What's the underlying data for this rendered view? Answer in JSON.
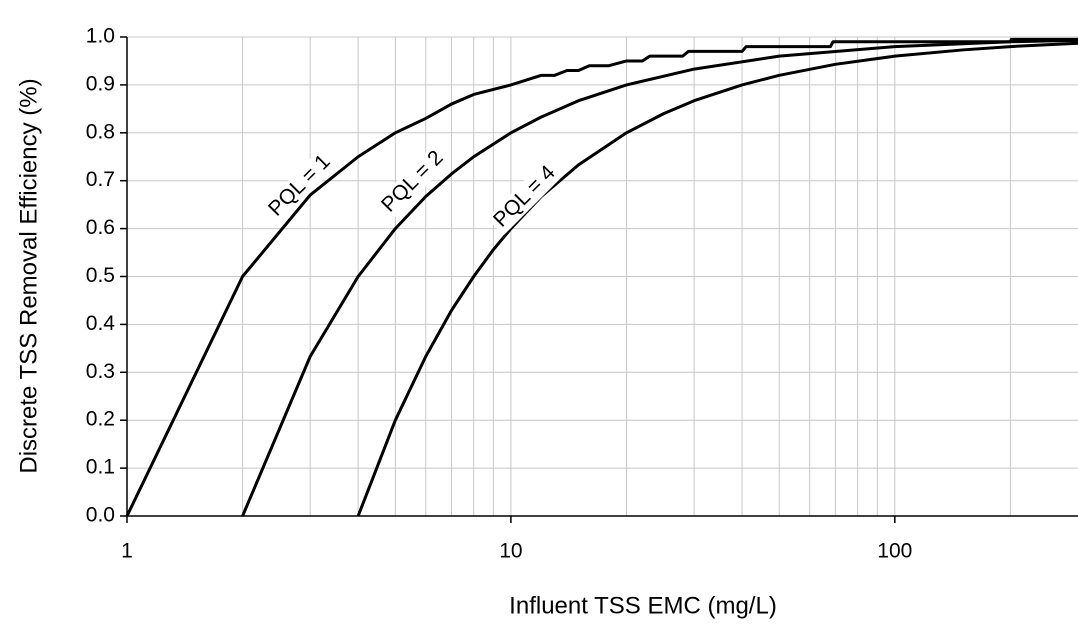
{
  "chart_data": {
    "type": "line",
    "xlabel": "Influent TSS EMC (mg/L)",
    "ylabel": "Discrete TSS Removal Efficiency (%)",
    "x_log": true,
    "xlim": [
      1,
      300
    ],
    "ylim": [
      0,
      1
    ],
    "xticks": [
      1,
      10,
      100
    ],
    "x_minor_grid": [
      2,
      3,
      4,
      5,
      6,
      7,
      8,
      9,
      20,
      30,
      40,
      50,
      60,
      70,
      80,
      90,
      200
    ],
    "yticks": [
      {
        "value": 0,
        "label": "0.0"
      },
      0.1,
      0.2,
      0.3,
      0.4,
      0.5,
      0.6,
      0.7,
      0.8,
      0.9,
      {
        "value": 1,
        "label": "1.0"
      }
    ],
    "grid": true,
    "series": [
      {
        "name": "PQL = 1",
        "color": "#000000",
        "x": [
          1,
          2,
          3,
          4,
          5,
          6,
          7,
          8,
          10,
          12,
          13,
          14,
          15,
          16,
          18,
          20,
          22,
          23,
          28,
          29,
          40,
          41,
          68,
          69,
          200,
          201,
          300
        ],
        "values": [
          0,
          0.5,
          0.67,
          0.75,
          0.8,
          0.83,
          0.86,
          0.88,
          0.9,
          0.92,
          0.92,
          0.93,
          0.93,
          0.94,
          0.94,
          0.95,
          0.95,
          0.96,
          0.96,
          0.97,
          0.97,
          0.98,
          0.98,
          0.99,
          0.99,
          0.995,
          0.995
        ]
      },
      {
        "name": "PQL = 2",
        "color": "#000000",
        "x": [
          2,
          3,
          4,
          5,
          6,
          7,
          8,
          10,
          12,
          15,
          20,
          30,
          50,
          100,
          200,
          300
        ],
        "values": [
          0,
          0.333,
          0.5,
          0.6,
          0.667,
          0.714,
          0.75,
          0.8,
          0.833,
          0.867,
          0.9,
          0.933,
          0.96,
          0.98,
          0.99,
          0.993
        ]
      },
      {
        "name": "PQL = 4",
        "color": "#000000",
        "x": [
          4,
          5,
          6,
          7,
          8,
          9,
          10,
          12,
          15,
          20,
          25,
          30,
          40,
          50,
          70,
          100,
          150,
          200,
          300
        ],
        "values": [
          0,
          0.2,
          0.333,
          0.429,
          0.5,
          0.556,
          0.6,
          0.667,
          0.733,
          0.8,
          0.84,
          0.867,
          0.9,
          0.92,
          0.943,
          0.96,
          0.973,
          0.98,
          0.987
        ]
      }
    ]
  }
}
